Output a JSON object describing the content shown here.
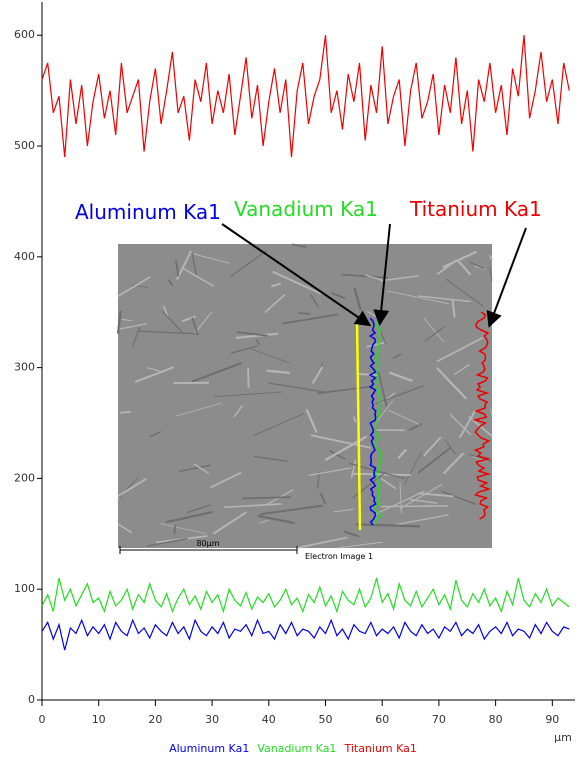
{
  "chart_data": {
    "type": "line",
    "x": [
      0,
      1,
      2,
      3,
      4,
      5,
      6,
      7,
      8,
      9,
      10,
      11,
      12,
      13,
      14,
      15,
      16,
      17,
      18,
      19,
      20,
      21,
      22,
      23,
      24,
      25,
      26,
      27,
      28,
      29,
      30,
      31,
      32,
      33,
      34,
      35,
      36,
      37,
      38,
      39,
      40,
      41,
      42,
      43,
      44,
      45,
      46,
      47,
      48,
      49,
      50,
      51,
      52,
      53,
      54,
      55,
      56,
      57,
      58,
      59,
      60,
      61,
      62,
      63,
      64,
      65,
      66,
      67,
      68,
      69,
      70,
      71,
      72,
      73,
      74,
      75,
      76,
      77,
      78,
      79,
      80,
      81,
      82,
      83,
      84,
      85,
      86,
      87,
      88,
      89,
      90,
      91,
      92,
      93
    ],
    "series": [
      {
        "name": "Aluminum Ka1",
        "color": "#0000ee",
        "values": [
          62,
          70,
          55,
          68,
          45,
          65,
          60,
          72,
          58,
          66,
          60,
          68,
          55,
          70,
          62,
          58,
          72,
          60,
          65,
          56,
          68,
          62,
          58,
          70,
          60,
          66,
          55,
          72,
          62,
          58,
          66,
          60,
          70,
          56,
          64,
          62,
          68,
          58,
          72,
          60,
          62,
          55,
          68,
          60,
          70,
          58,
          64,
          62,
          56,
          66,
          60,
          72,
          58,
          64,
          55,
          68,
          62,
          60,
          70,
          58,
          64,
          60,
          66,
          56,
          70,
          62,
          58,
          68,
          60,
          64,
          56,
          66,
          62,
          70,
          58,
          64,
          60,
          68,
          55,
          62,
          66,
          60,
          70,
          58,
          64,
          62,
          56,
          68,
          60,
          70,
          62,
          58,
          66,
          64
        ]
      },
      {
        "name": "Vanadium Ka1",
        "color": "#22dd22",
        "values": [
          85,
          95,
          80,
          110,
          90,
          100,
          85,
          95,
          105,
          88,
          92,
          80,
          98,
          85,
          90,
          100,
          82,
          95,
          88,
          105,
          90,
          84,
          96,
          80,
          92,
          100,
          86,
          94,
          82,
          98,
          88,
          95,
          80,
          100,
          90,
          85,
          97,
          82,
          93,
          88,
          96,
          84,
          90,
          100,
          86,
          92,
          80,
          95,
          88,
          102,
          85,
          94,
          80,
          98,
          90,
          86,
          100,
          84,
          92,
          110,
          88,
          96,
          82,
          105,
          90,
          85,
          98,
          84,
          92,
          100,
          86,
          95,
          82,
          108,
          90,
          84,
          96,
          88,
          100,
          85,
          92,
          80,
          98,
          86,
          110,
          90,
          84,
          96,
          88,
          100,
          85,
          92,
          88,
          84
        ]
      },
      {
        "name": "Titanium Ka1",
        "color": "#ee0000",
        "values": [
          560,
          575,
          530,
          545,
          490,
          560,
          520,
          555,
          500,
          540,
          565,
          525,
          550,
          510,
          575,
          530,
          545,
          560,
          495,
          540,
          570,
          520,
          550,
          585,
          530,
          545,
          505,
          560,
          540,
          575,
          520,
          550,
          530,
          565,
          510,
          545,
          580,
          525,
          555,
          500,
          540,
          570,
          530,
          560,
          490,
          550,
          575,
          520,
          545,
          560,
          600,
          530,
          550,
          515,
          565,
          540,
          575,
          505,
          555,
          530,
          590,
          520,
          545,
          560,
          500,
          550,
          575,
          525,
          540,
          565,
          510,
          555,
          530,
          580,
          520,
          550,
          495,
          560,
          540,
          575,
          530,
          555,
          510,
          570,
          545,
          600,
          525,
          550,
          585,
          540,
          560,
          520,
          575,
          550
        ]
      }
    ],
    "xlim": [
      0,
      94
    ],
    "ylim": [
      0,
      630
    ],
    "xticks": [
      0,
      10,
      20,
      30,
      40,
      50,
      60,
      70,
      80,
      90
    ],
    "yticks": [
      0,
      100,
      200,
      300,
      400,
      500,
      600
    ],
    "xlabel": "µm",
    "annotations": {
      "aluminum": "Aluminum Ka1",
      "vanadium": "Vanadium Ka1",
      "titanium": "Titanium Ka1",
      "scale_bar": "80µm",
      "image_label": "Electron Image 1"
    }
  }
}
